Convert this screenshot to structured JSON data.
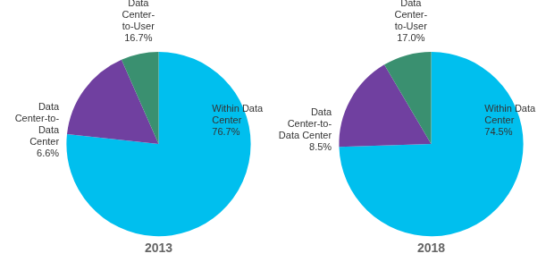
{
  "chart_data": [
    {
      "type": "pie",
      "title": "2013",
      "categories": [
        "Within Data\nCenter",
        "Data\nCenter-\nto-User",
        "Data\nCenter-to-\nData\nCenter"
      ],
      "values": [
        76.7,
        16.7,
        6.6
      ],
      "value_labels": [
        "76.7%",
        "16.7%",
        "6.6%"
      ],
      "colors": [
        "#00bfee",
        "#7040a0",
        "#3a9070"
      ],
      "data_labels": true
    },
    {
      "type": "pie",
      "title": "2018",
      "categories": [
        "Within Data\nCenter",
        "Data\nCenter-\nto-User",
        "Data\nCenter-to-\nData Center"
      ],
      "values": [
        74.5,
        17.0,
        8.5
      ],
      "value_labels": [
        "74.5%",
        "17.0%",
        "8.5%"
      ],
      "colors": [
        "#00bfee",
        "#7040a0",
        "#3a9070"
      ],
      "data_labels": true
    }
  ]
}
